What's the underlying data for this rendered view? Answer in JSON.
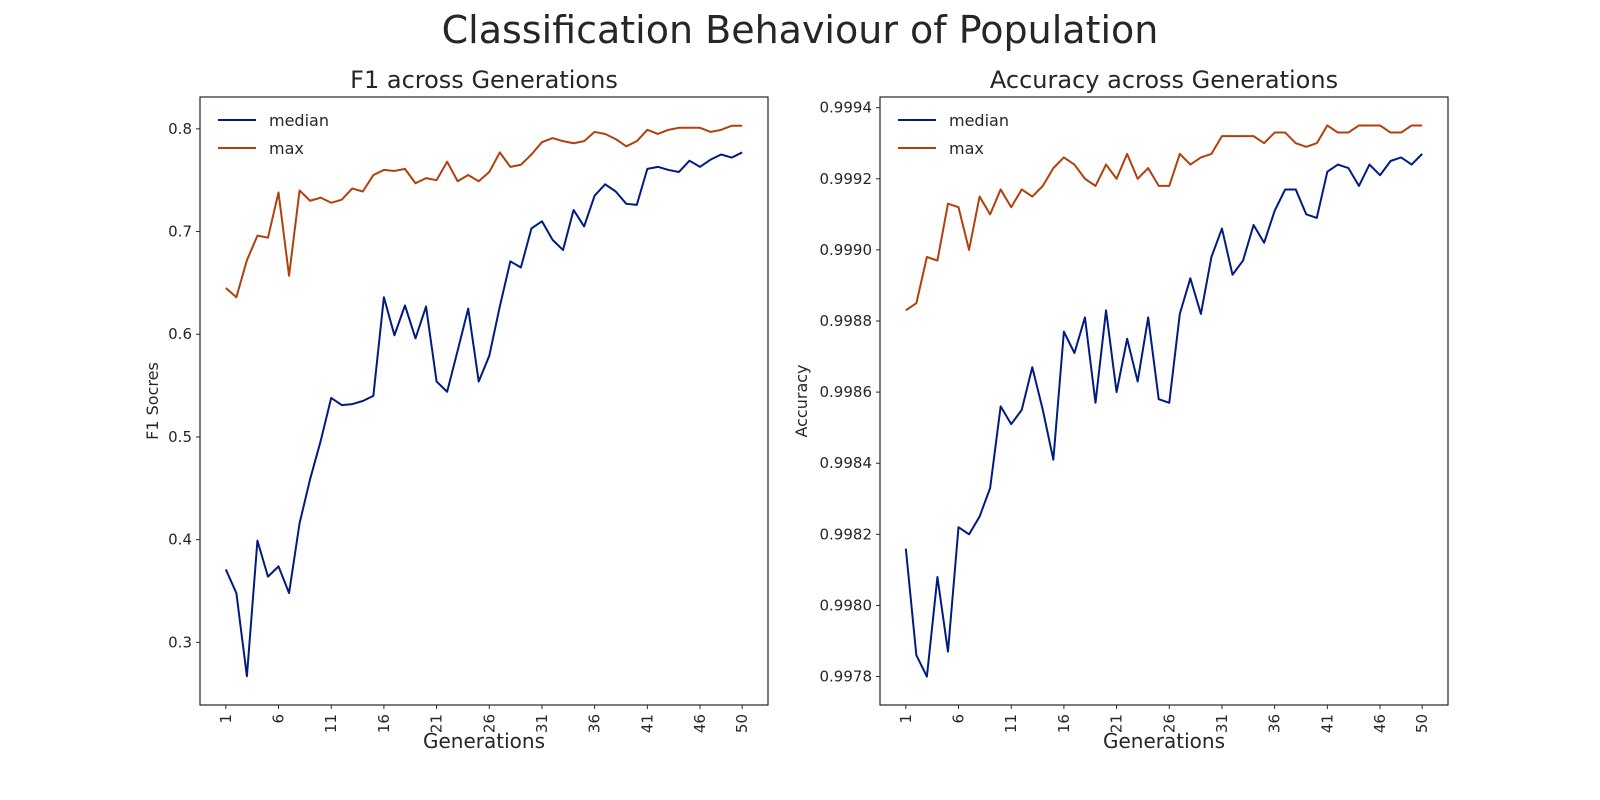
{
  "suptitle": "Classification Behaviour of Population",
  "colors": {
    "median": "#001c7f",
    "max": "#b1400d",
    "axes": "#262626"
  },
  "chart_data": [
    {
      "type": "line",
      "title": "F1 across Generations",
      "xlabel": "Generations",
      "ylabel": "F1 Socres",
      "x": [
        1,
        2,
        3,
        4,
        5,
        6,
        7,
        8,
        9,
        10,
        11,
        12,
        13,
        14,
        15,
        16,
        17,
        18,
        19,
        20,
        21,
        22,
        23,
        24,
        25,
        26,
        27,
        28,
        29,
        30,
        31,
        32,
        33,
        34,
        35,
        36,
        37,
        38,
        39,
        40,
        41,
        42,
        43,
        44,
        45,
        46,
        47,
        48,
        49,
        50
      ],
      "xticks": [
        1,
        6,
        11,
        16,
        21,
        26,
        31,
        36,
        41,
        46,
        50
      ],
      "yticks": [
        0.3,
        0.4,
        0.5,
        0.6,
        0.7,
        0.8
      ],
      "ytick_labels": [
        "0.3",
        "0.4",
        "0.5",
        "0.6",
        "0.7",
        "0.8"
      ],
      "xlim": [
        -1.45,
        52.45
      ],
      "ylim": [
        0.239,
        0.831
      ],
      "grid": false,
      "legend_position": "upper left",
      "series": [
        {
          "name": "median",
          "values": [
            0.371,
            0.348,
            0.267,
            0.399,
            0.364,
            0.374,
            0.348,
            0.416,
            0.459,
            0.496,
            0.538,
            0.531,
            0.532,
            0.535,
            0.54,
            0.636,
            0.599,
            0.628,
            0.596,
            0.627,
            0.554,
            0.544,
            0.584,
            0.625,
            0.554,
            0.579,
            0.627,
            0.671,
            0.665,
            0.703,
            0.71,
            0.692,
            0.682,
            0.721,
            0.705,
            0.735,
            0.746,
            0.739,
            0.727,
            0.726,
            0.761,
            0.763,
            0.76,
            0.758,
            0.769,
            0.763,
            0.77,
            0.775,
            0.772,
            0.777
          ]
        },
        {
          "name": "max",
          "values": [
            0.645,
            0.636,
            0.672,
            0.696,
            0.694,
            0.738,
            0.657,
            0.74,
            0.73,
            0.733,
            0.728,
            0.731,
            0.742,
            0.739,
            0.755,
            0.76,
            0.759,
            0.761,
            0.747,
            0.752,
            0.75,
            0.768,
            0.749,
            0.755,
            0.749,
            0.758,
            0.777,
            0.763,
            0.765,
            0.775,
            0.787,
            0.791,
            0.788,
            0.786,
            0.788,
            0.797,
            0.795,
            0.79,
            0.783,
            0.788,
            0.799,
            0.795,
            0.799,
            0.801,
            0.801,
            0.801,
            0.797,
            0.799,
            0.803,
            0.803
          ]
        }
      ]
    },
    {
      "type": "line",
      "title": "Accuracy across Generations",
      "xlabel": "Generations",
      "ylabel": "Accuracy",
      "x": [
        1,
        2,
        3,
        4,
        5,
        6,
        7,
        8,
        9,
        10,
        11,
        12,
        13,
        14,
        15,
        16,
        17,
        18,
        19,
        20,
        21,
        22,
        23,
        24,
        25,
        26,
        27,
        28,
        29,
        30,
        31,
        32,
        33,
        34,
        35,
        36,
        37,
        38,
        39,
        40,
        41,
        42,
        43,
        44,
        45,
        46,
        47,
        48,
        49,
        50
      ],
      "xticks": [
        1,
        6,
        11,
        16,
        21,
        26,
        31,
        36,
        41,
        46,
        50
      ],
      "yticks": [
        0.9978,
        0.998,
        0.9982,
        0.9984,
        0.9986,
        0.9988,
        0.999,
        0.9992,
        0.9994
      ],
      "ytick_labels": [
        "0.9978",
        "0.9980",
        "0.9982",
        "0.9984",
        "0.9986",
        "0.9988",
        "0.9990",
        "0.9992",
        "0.9994"
      ],
      "xlim": [
        -1.45,
        52.45
      ],
      "ylim": [
        0.99772,
        0.99943
      ],
      "grid": false,
      "legend_position": "upper left",
      "series": [
        {
          "name": "median",
          "values": [
            0.99816,
            0.99786,
            0.9978,
            0.99808,
            0.99787,
            0.99822,
            0.9982,
            0.99825,
            0.99833,
            0.99856,
            0.99851,
            0.99855,
            0.99867,
            0.99855,
            0.99841,
            0.99877,
            0.99871,
            0.99881,
            0.99857,
            0.99883,
            0.9986,
            0.99875,
            0.99863,
            0.99881,
            0.99858,
            0.99857,
            0.99882,
            0.99892,
            0.99882,
            0.99898,
            0.99906,
            0.99893,
            0.99897,
            0.99907,
            0.99902,
            0.99911,
            0.99917,
            0.99917,
            0.9991,
            0.99909,
            0.99922,
            0.99924,
            0.99923,
            0.99918,
            0.99924,
            0.99921,
            0.99925,
            0.99926,
            0.99924,
            0.99927
          ]
        },
        {
          "name": "max",
          "values": [
            0.99883,
            0.99885,
            0.99898,
            0.99897,
            0.99913,
            0.99912,
            0.999,
            0.99915,
            0.9991,
            0.99917,
            0.99912,
            0.99917,
            0.99915,
            0.99918,
            0.99923,
            0.99926,
            0.99924,
            0.9992,
            0.99918,
            0.99924,
            0.9992,
            0.99927,
            0.9992,
            0.99923,
            0.99918,
            0.99918,
            0.99927,
            0.99924,
            0.99926,
            0.99927,
            0.99932,
            0.99932,
            0.99932,
            0.99932,
            0.9993,
            0.99933,
            0.99933,
            0.9993,
            0.99929,
            0.9993,
            0.99935,
            0.99933,
            0.99933,
            0.99935,
            0.99935,
            0.99935,
            0.99933,
            0.99933,
            0.99935,
            0.99935
          ]
        }
      ]
    }
  ]
}
